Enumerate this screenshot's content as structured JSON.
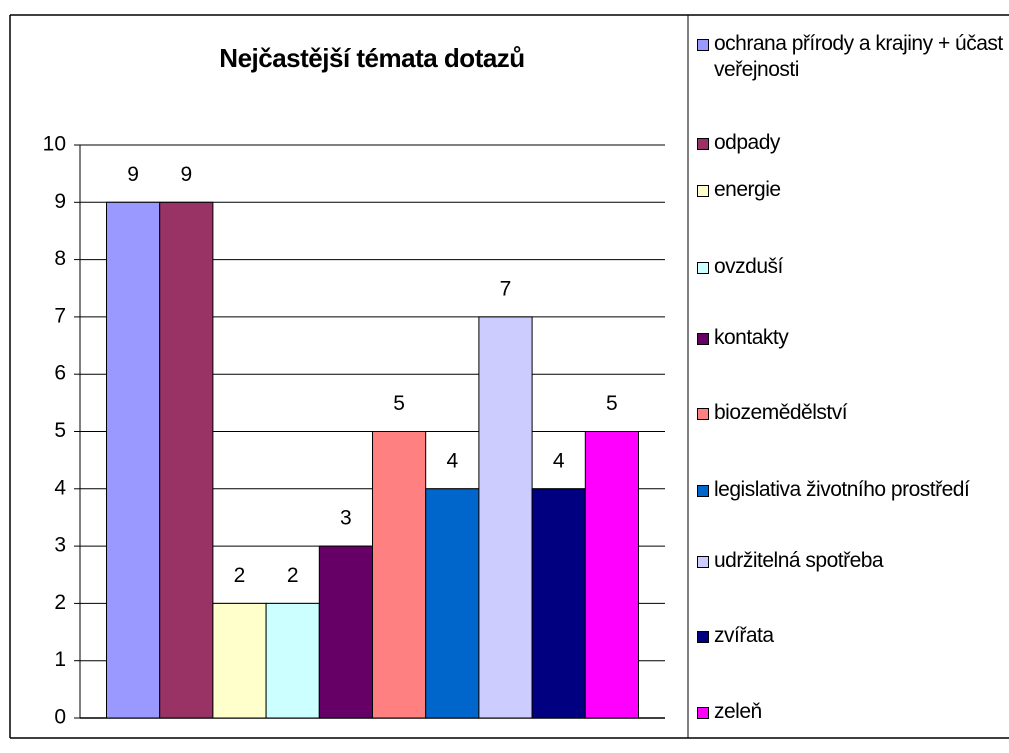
{
  "chart_data": {
    "type": "bar",
    "title": "Nejčastější témata dotazů",
    "categories": [
      null
    ],
    "series": [
      {
        "name": "ochrana přírody a krajiny + účast veřejnosti",
        "color": "#9999ff",
        "values": [
          9
        ]
      },
      {
        "name": "odpady",
        "color": "#993366",
        "values": [
          9
        ]
      },
      {
        "name": "energie",
        "color": "#ffffcc",
        "values": [
          2
        ]
      },
      {
        "name": "ovzduší",
        "color": "#ccffff",
        "values": [
          2
        ]
      },
      {
        "name": "kontakty",
        "color": "#660066",
        "values": [
          3
        ]
      },
      {
        "name": "biozemědělství",
        "color": "#ff8080",
        "values": [
          5
        ]
      },
      {
        "name": "legislativa životního prostředí",
        "color": "#0066cc",
        "values": [
          4
        ]
      },
      {
        "name": "udržitelná spotřeba",
        "color": "#ccccff",
        "values": [
          7
        ]
      },
      {
        "name": "zvířata",
        "color": "#000080",
        "values": [
          4
        ]
      },
      {
        "name": "zeleň",
        "color": "#ff00ff",
        "values": [
          5
        ]
      }
    ],
    "ylim": [
      0,
      10
    ],
    "yticks": [
      0,
      1,
      2,
      3,
      4,
      5,
      6,
      7,
      8,
      9,
      10
    ],
    "grid": true,
    "legend": "right"
  }
}
